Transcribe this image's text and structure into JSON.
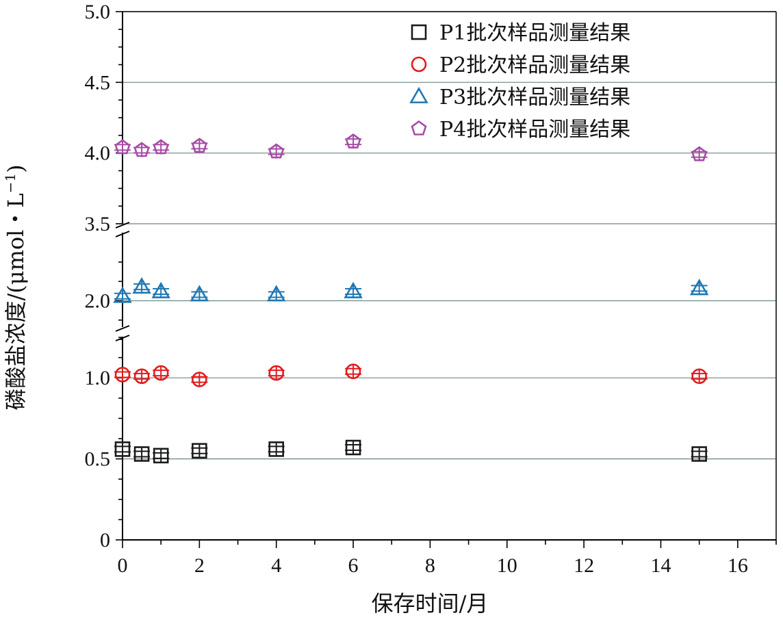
{
  "chart_data": {
    "type": "scatter",
    "title": "",
    "xlabel": "保存时间/月",
    "ylabel_main": "磷酸盐浓度/(μmol・L",
    "ylabel_sup": "−1",
    "ylabel_close": ")",
    "xlim": [
      0,
      17
    ],
    "xticks": [
      0,
      2,
      4,
      6,
      8,
      10,
      12,
      14,
      16
    ],
    "xtick_labels": [
      "0",
      "2",
      "4",
      "6",
      "8",
      "10",
      "12",
      "14",
      "16"
    ],
    "ytick_labels": [
      "0",
      "0.5",
      "1.0",
      "2.0",
      "3.5",
      "4.0",
      "4.5",
      "5.0"
    ],
    "y_axis_breaks": [
      "1.0–2.0",
      "2.0–3.5"
    ],
    "grid": "horizontal",
    "legend_position": "top-right",
    "x": [
      0,
      0.5,
      1,
      2,
      4,
      6,
      15
    ],
    "series": [
      {
        "name": "P1批次样品测量结果",
        "marker": "square",
        "color": "#1a1a1a",
        "values": [
          0.56,
          0.53,
          0.52,
          0.55,
          0.56,
          0.57,
          0.53
        ]
      },
      {
        "name": "P2批次样品测量结果",
        "marker": "circle",
        "color": "#e31a1c",
        "values": [
          1.02,
          1.01,
          1.03,
          0.99,
          1.03,
          1.04,
          1.01
        ]
      },
      {
        "name": "P3批次样品测量结果",
        "marker": "triangle",
        "color": "#1f78b4",
        "values": [
          2.03,
          2.09,
          2.06,
          2.04,
          2.04,
          2.06,
          2.08
        ]
      },
      {
        "name": "P4批次样品测量结果",
        "marker": "pentagon",
        "color": "#a64ca6",
        "values": [
          4.04,
          4.02,
          4.04,
          4.05,
          4.01,
          4.08,
          3.99
        ]
      }
    ]
  }
}
